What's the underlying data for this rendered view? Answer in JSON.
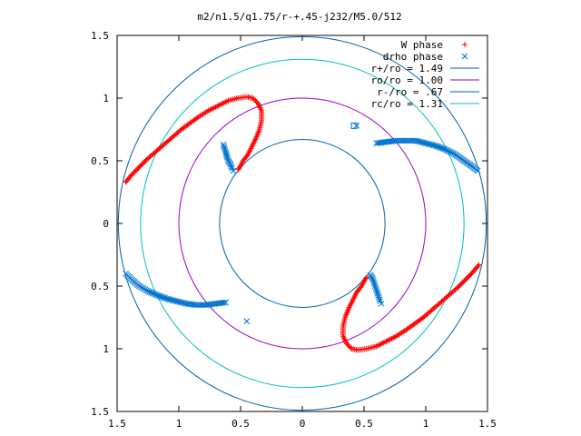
{
  "chart_data": {
    "type": "scatter",
    "title": "m2/n1.5/q1.75/r-+.45-j232/M5.0/512",
    "xlim": [
      -1.5,
      1.5
    ],
    "ylim": [
      -1.5,
      1.5
    ],
    "x_ticks": [
      -1.5,
      -1,
      -0.5,
      0,
      0.5,
      1,
      1.5
    ],
    "y_ticks": [
      -1.5,
      -1,
      -0.5,
      0,
      0.5,
      1,
      1.5
    ],
    "x_tick_labels": [
      "1.5",
      "1",
      "0.5",
      "0",
      "0.5",
      "1",
      "1.5"
    ],
    "y_tick_labels": [
      "1.5",
      "1",
      "0.5",
      "0",
      "0.5",
      "1",
      "1.5"
    ],
    "grid": false,
    "legend_position": "top-right",
    "series": [
      {
        "name": "W phase",
        "kind": "points",
        "marker": "plus",
        "color": "#ff0000",
        "x": [
          -1.43,
          -1.38,
          -1.32,
          -1.26,
          -1.19,
          -1.12,
          -1.05,
          -0.98,
          -0.91,
          -0.84,
          -0.76,
          -0.68,
          -0.6,
          -0.52,
          -0.45,
          -0.4,
          -0.36,
          -0.33,
          -0.33,
          -0.35,
          -0.38,
          -0.41,
          -0.44,
          -0.48,
          -0.5,
          -0.52,
          1.43,
          1.38,
          1.32,
          1.26,
          1.19,
          1.12,
          1.05,
          0.98,
          0.91,
          0.84,
          0.76,
          0.68,
          0.6,
          0.52,
          0.45,
          0.4,
          0.36,
          0.33,
          0.33,
          0.35,
          0.38,
          0.41,
          0.44,
          0.48,
          0.5,
          0.52
        ],
        "y": [
          0.33,
          0.39,
          0.45,
          0.51,
          0.57,
          0.63,
          0.69,
          0.75,
          0.8,
          0.85,
          0.9,
          0.94,
          0.98,
          1.0,
          1.01,
          1.0,
          0.96,
          0.9,
          0.82,
          0.74,
          0.67,
          0.61,
          0.55,
          0.5,
          0.46,
          0.43,
          -0.33,
          -0.39,
          -0.45,
          -0.51,
          -0.57,
          -0.63,
          -0.69,
          -0.75,
          -0.8,
          -0.85,
          -0.9,
          -0.94,
          -0.98,
          -1.0,
          -1.01,
          -1.0,
          -0.96,
          -0.9,
          -0.82,
          -0.74,
          -0.67,
          -0.61,
          -0.55,
          -0.5,
          -0.46,
          -0.43
        ]
      },
      {
        "name": "drho phase",
        "kind": "points",
        "marker": "cross",
        "color": "#0073d0",
        "x": [
          -0.64,
          -0.63,
          -0.62,
          -0.61,
          -0.6,
          -0.58,
          -0.57,
          -0.56,
          0.6,
          0.68,
          0.76,
          0.84,
          0.92,
          1.0,
          1.08,
          1.16,
          1.24,
          1.31,
          1.37,
          1.42,
          -1.43,
          -1.38,
          -1.32,
          -1.25,
          -1.18,
          -1.1,
          -1.02,
          -0.94,
          -0.86,
          -0.78,
          -0.7,
          -0.62,
          0.55,
          0.57,
          0.58,
          0.59,
          0.6,
          0.61,
          0.62,
          0.63,
          0.64,
          0.44,
          -0.45
        ],
        "y": [
          0.63,
          0.6,
          0.57,
          0.53,
          0.5,
          0.47,
          0.44,
          0.42,
          0.64,
          0.65,
          0.66,
          0.66,
          0.66,
          0.64,
          0.62,
          0.59,
          0.55,
          0.5,
          0.46,
          0.42,
          -0.4,
          -0.45,
          -0.5,
          -0.54,
          -0.57,
          -0.6,
          -0.62,
          -0.64,
          -0.65,
          -0.65,
          -0.64,
          -0.63,
          -0.41,
          -0.44,
          -0.47,
          -0.5,
          -0.53,
          -0.56,
          -0.59,
          -0.62,
          -0.64,
          0.78,
          -0.78
        ]
      },
      {
        "name": "r+/ro = 1.49",
        "kind": "circle",
        "radius": 1.49,
        "color": "#0060ad"
      },
      {
        "name": "ro/ro = 1.00",
        "kind": "circle",
        "radius": 1.0,
        "color": "#9400d3"
      },
      {
        "name": "r-/ro = .67",
        "kind": "circle",
        "radius": 0.67,
        "color": "#0060ad"
      },
      {
        "name": "rc/ro = 1.31",
        "kind": "circle",
        "radius": 1.31,
        "color": "#00c0c0"
      }
    ],
    "extra_markers": [
      {
        "marker": "square",
        "color": "#0073d0",
        "x": 0.42,
        "y": 0.78
      }
    ]
  }
}
